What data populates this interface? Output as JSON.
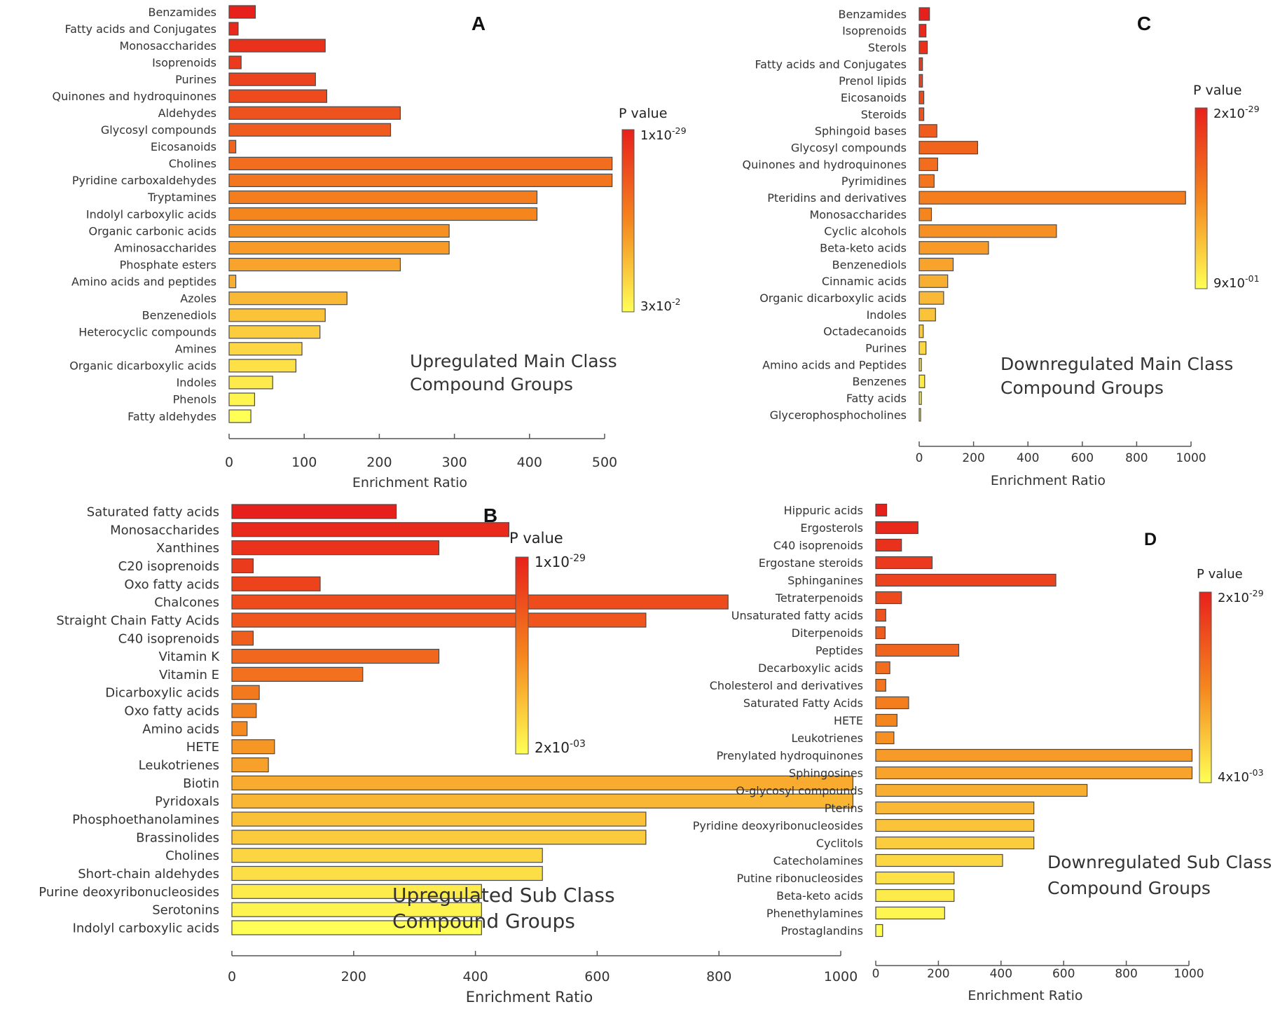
{
  "figure": {
    "colors": {
      "high": "#e8201c",
      "mid": "#f5861e",
      "low": "#ffff55"
    },
    "pvalue_label": "P value"
  },
  "chart_data": [
    {
      "id": "A",
      "type": "bar",
      "orientation": "horizontal",
      "title": "Upregulated Main Class Compound Groups",
      "caption_lines": [
        "Upregulated Main Class",
        "Compound Groups"
      ],
      "xlabel": "Enrichment  Ratio",
      "xlim": [
        0,
        500
      ],
      "xticks": [
        0,
        100,
        200,
        300,
        400,
        500
      ],
      "legend": {
        "title": "P value",
        "high_base": "1x10",
        "high_exp": "-29",
        "low_base": "3x10",
        "low_exp": "-2"
      },
      "categories": [
        "Benzamides",
        "Fatty acids and Conjugates",
        "Monosaccharides",
        "Isoprenoids",
        "Purines",
        "Quinones and hydroquinones",
        "Aldehydes",
        "Glycosyl compounds",
        "Eicosanoids",
        "Cholines",
        "Pyridine carboxaldehydes",
        "Tryptamines",
        "Indolyl carboxylic acids",
        "Organic carbonic acids",
        "Aminosaccharides",
        "Phosphate esters",
        "Amino acids and peptides",
        "Azoles",
        "Benzenediols",
        "Heterocyclic compounds",
        "Amines",
        "Organic dicarboxylic acids",
        "Indoles",
        "Phenols",
        "Fatty aldehydes"
      ],
      "values": [
        35,
        12,
        128,
        16,
        115,
        130,
        228,
        215,
        9,
        510,
        510,
        410,
        410,
        293,
        293,
        228,
        9,
        157,
        128,
        121,
        97,
        89,
        58,
        34,
        29
      ]
    },
    {
      "id": "B",
      "type": "bar",
      "orientation": "horizontal",
      "title": "Upregulated Sub Class Compound Groups",
      "caption_lines": [
        "Upregulated Sub Class",
        "Compound Groups"
      ],
      "xlabel": "Enrichment  Ratio",
      "xlim": [
        0,
        1000
      ],
      "xticks": [
        0,
        200,
        400,
        600,
        800,
        1000
      ],
      "legend": {
        "title": "P value",
        "high_base": "1x10",
        "high_exp": "-29",
        "low_base": "2x10",
        "low_exp": "-03"
      },
      "categories": [
        "Saturated fatty acids",
        "Monosaccharides",
        "Xanthines",
        "C20 isoprenoids",
        "Oxo fatty acids",
        "Chalcones",
        "Straight Chain Fatty Acids",
        "C40 isoprenoids",
        "Vitamin K",
        "Vitamin E",
        "Dicarboxylic acids",
        "Oxo fatty acids",
        "Amino acids",
        "HETE",
        "Leukotrienes",
        "Biotin",
        "Pyridoxals",
        "Phosphoethanolamines",
        "Brassinolides",
        "Cholines",
        "Short-chain aldehydes",
        "Purine deoxyribonucleosides",
        "Serotonins",
        "Indolyl carboxylic acids"
      ],
      "values": [
        270,
        455,
        340,
        35,
        145,
        815,
        680,
        35,
        340,
        215,
        45,
        40,
        25,
        70,
        60,
        1020,
        1020,
        680,
        680,
        510,
        510,
        410,
        410,
        410
      ]
    },
    {
      "id": "C",
      "type": "bar",
      "orientation": "horizontal",
      "title": "Downregulated Main Class Compound Groups",
      "caption_lines": [
        "Downregulated Main Class",
        "Compound Groups"
      ],
      "xlabel": "Enrichment  Ratio",
      "xlim": [
        0,
        1000
      ],
      "xticks": [
        0,
        200,
        400,
        600,
        800,
        1000
      ],
      "legend": {
        "title": "P value",
        "high_base": "2x10",
        "high_exp": "-29",
        "low_base": "9x10",
        "low_exp": "-01"
      },
      "categories": [
        "Benzamides",
        "Isoprenoids",
        "Sterols",
        "Fatty acids and Conjugates",
        "Prenol lipids",
        "Eicosanoids",
        "Steroids",
        "Sphingoid bases",
        "Glycosyl compounds",
        "Quinones and hydroquinones",
        "Pyrimidines",
        "Pteridins and derivatives",
        "Monosaccharides",
        "Cyclic alcohols",
        "Beta-keto  acids",
        "Benzenediols",
        "Cinnamic acids",
        "Organic dicarboxylic acids",
        "Indoles",
        "Octadecanoids",
        "Purines",
        "Amino acids and Peptides",
        "Benzenes",
        "Fatty acids",
        "Glycerophosphocholines"
      ],
      "values": [
        38,
        25,
        30,
        12,
        12,
        17,
        17,
        65,
        215,
        68,
        55,
        980,
        45,
        505,
        255,
        125,
        105,
        90,
        60,
        15,
        25,
        8,
        20,
        8,
        5
      ]
    },
    {
      "id": "D",
      "type": "bar",
      "orientation": "horizontal",
      "title": "Downregulated Sub Class Compound Groups",
      "caption_lines": [
        "Downregulated Sub Class",
        "Compound Groups"
      ],
      "xlabel": "Enrichment  Ratio",
      "xlim": [
        0,
        1000
      ],
      "xticks": [
        0,
        200,
        400,
        600,
        800,
        1000
      ],
      "legend": {
        "title": "P value",
        "high_base": "2x10",
        "high_exp": "-29",
        "low_base": "4x10",
        "low_exp": "-03"
      },
      "categories": [
        "Hippuric acids",
        "Ergosterols",
        "C40 isoprenoids",
        "Ergostane steroids",
        "Sphinganines",
        "Tetraterpenoids",
        "Unsaturated fatty acids",
        "Diterpenoids",
        "Peptides",
        "Decarboxylic acids",
        "Cholesterol and derivatives",
        "Saturated Fatty Acids",
        "HETE",
        "Leukotrienes",
        "Prenylated hydroquinones",
        "Sphingosines",
        "O-glycosyl compounds",
        "Pterins",
        "Pyridine deoxyribonucleosides",
        "Cyclitols",
        "Catecholamines",
        "Putine ribonucleosides",
        "Beta-keto  acids",
        "Phenethylamines",
        "Prostaglandins"
      ],
      "values": [
        35,
        135,
        82,
        180,
        575,
        82,
        32,
        30,
        265,
        45,
        32,
        105,
        68,
        58,
        1010,
        1010,
        675,
        505,
        505,
        505,
        405,
        250,
        250,
        220,
        22
      ]
    }
  ]
}
